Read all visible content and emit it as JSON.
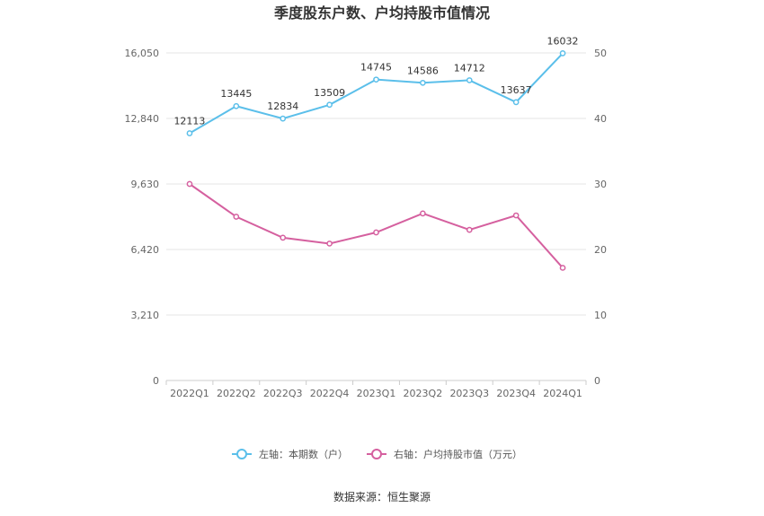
{
  "chart_data": {
    "type": "line",
    "title": "季度股东户数、户均持股市值情况",
    "categories": [
      "2022Q1",
      "2022Q2",
      "2022Q3",
      "2022Q4",
      "2023Q1",
      "2023Q2",
      "2023Q3",
      "2023Q4",
      "2024Q1"
    ],
    "series": [
      {
        "name": "左轴：本期数（户）",
        "axis": "left",
        "color": "#5bbfea",
        "values": [
          12113,
          13445,
          12834,
          13509,
          14745,
          14586,
          14712,
          13637,
          16032
        ],
        "labels": [
          "12113",
          "13445",
          "12834",
          "13509",
          "14745",
          "14586",
          "14712",
          "13637",
          "16032"
        ]
      },
      {
        "name": "右轴：户均持股市值（万元）",
        "axis": "right",
        "color": "#d5609f",
        "values": [
          30.0,
          25.0,
          21.8,
          20.9,
          22.6,
          25.5,
          23.0,
          25.2,
          17.2
        ]
      }
    ],
    "left_axis": {
      "ylim": [
        0,
        16050
      ],
      "ticks": [
        "0",
        "3,210",
        "6,420",
        "9,630",
        "12,840",
        "16,050"
      ],
      "tick_values": [
        0,
        3210,
        6420,
        9630,
        12840,
        16050
      ]
    },
    "right_axis": {
      "ylim": [
        0,
        50
      ],
      "ticks": [
        "0",
        "10",
        "20",
        "30",
        "40",
        "50"
      ],
      "tick_values": [
        0,
        10,
        20,
        30,
        40,
        50
      ]
    },
    "grid": true,
    "legend_position": "bottom"
  },
  "source": "数据来源：恒生聚源"
}
